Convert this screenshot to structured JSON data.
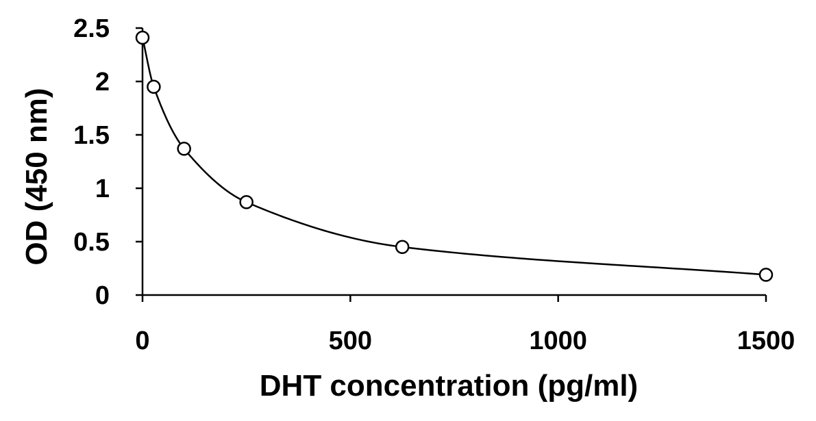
{
  "chart_data": {
    "type": "scatter",
    "title": "",
    "xlabel": "DHT concentration (pg/ml)",
    "ylabel": "OD (450 nm)",
    "xlim": [
      0,
      1500
    ],
    "ylim": [
      0,
      2.5
    ],
    "x_ticks": [
      0,
      500,
      1000,
      1500
    ],
    "x_tick_labels": [
      "0",
      "500",
      "1000",
      "1500"
    ],
    "y_ticks": [
      0,
      0.5,
      1,
      1.5,
      2,
      2.5
    ],
    "y_tick_labels": [
      "0",
      "0.5",
      "1",
      "1.5",
      "2",
      "2.5"
    ],
    "grid": false,
    "legend": "none",
    "series": [
      {
        "marker": "open-circle",
        "line": "smooth",
        "x": [
          0,
          27,
          100,
          250,
          625,
          1500
        ],
        "y": [
          2.41,
          1.95,
          1.37,
          0.87,
          0.45,
          0.19
        ]
      }
    ],
    "colors": {
      "line": "#000000",
      "marker_fill": "#ffffff",
      "marker_stroke": "#000000"
    }
  }
}
